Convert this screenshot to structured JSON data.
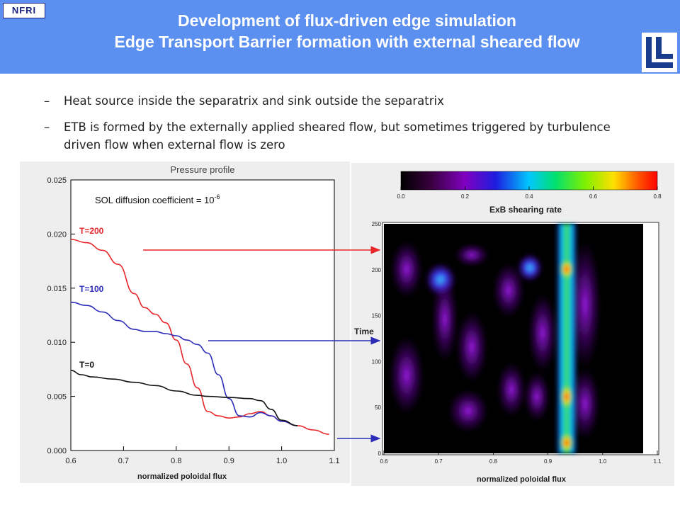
{
  "header": {
    "logo_left": "NFRI",
    "title_line1": "Development of flux-driven edge simulation",
    "title_line2": "Edge Transport Barrier formation with external sheared flow"
  },
  "bullets": [
    {
      "dash": "–",
      "text": "Heat source inside the separatrix and sink outside the separatrix"
    },
    {
      "dash": "–",
      "text": "ETB is formed by the externally applied sheared flow, but sometimes triggered by turbulence driven flow when external flow is zero"
    }
  ],
  "colors": {
    "header_bg": "#5b8ff0",
    "t200": "#e8262a",
    "t100": "#2c2cb8",
    "t0": "#111111"
  },
  "chart_data": [
    {
      "type": "line",
      "title": "Pressure profile",
      "annotation": "SOL diffusion coefficient = 10",
      "annotation_exponent": "-6",
      "xlabel": "normalized poloidal flux",
      "xlim": [
        0.6,
        1.1
      ],
      "ylim": [
        0.0,
        0.025
      ],
      "xticks": [
        "0.6",
        "0.7",
        "0.8",
        "0.9",
        "1.0",
        "1.1"
      ],
      "yticks": [
        "0.000",
        "0.005",
        "0.010",
        "0.015",
        "0.020",
        "0.025"
      ],
      "series": [
        {
          "name": "T=200",
          "color": "#e8262a",
          "x": [
            0.6,
            0.63,
            0.66,
            0.69,
            0.72,
            0.74,
            0.76,
            0.78,
            0.8,
            0.82,
            0.84,
            0.86,
            0.88,
            0.9,
            0.92,
            0.94,
            0.96,
            0.98,
            1.0,
            1.03,
            1.06,
            1.09
          ],
          "y": [
            0.0195,
            0.0192,
            0.0185,
            0.0172,
            0.0145,
            0.0132,
            0.0126,
            0.0118,
            0.0102,
            0.008,
            0.0058,
            0.0036,
            0.0032,
            0.003,
            0.0031,
            0.0034,
            0.0036,
            0.0032,
            0.0027,
            0.0023,
            0.0019,
            0.0015
          ]
        },
        {
          "name": "T=100",
          "color": "#2c2cb8",
          "x": [
            0.6,
            0.63,
            0.66,
            0.69,
            0.72,
            0.74,
            0.76,
            0.78,
            0.8,
            0.82,
            0.84,
            0.86,
            0.88,
            0.9,
            0.92,
            0.94,
            0.96,
            0.98,
            1.0,
            1.03
          ],
          "y": [
            0.0137,
            0.0134,
            0.0128,
            0.012,
            0.0112,
            0.011,
            0.011,
            0.0108,
            0.0106,
            0.0102,
            0.0098,
            0.009,
            0.007,
            0.0048,
            0.0032,
            0.0031,
            0.0035,
            0.0032,
            0.0027,
            0.0023
          ]
        },
        {
          "name": "T=0",
          "color": "#111111",
          "x": [
            0.6,
            0.62,
            0.64,
            0.68,
            0.72,
            0.76,
            0.8,
            0.84,
            0.86,
            0.9,
            0.94,
            0.96,
            0.98,
            1.0,
            1.03
          ],
          "y": [
            0.0074,
            0.007,
            0.0068,
            0.0066,
            0.0063,
            0.006,
            0.0055,
            0.0051,
            0.005,
            0.0049,
            0.0048,
            0.0046,
            0.0038,
            0.0028,
            0.0023
          ]
        }
      ]
    },
    {
      "type": "heatmap",
      "title": "ExB shearing rate",
      "xlabel": "normalized poloidal flux",
      "ylabel": "Time",
      "xlim": [
        0.6,
        1.1
      ],
      "ylim": [
        0,
        250
      ],
      "xticks": [
        "0.6",
        "0.7",
        "0.8",
        "0.9",
        "1.0",
        "1.1"
      ],
      "yticks": [
        "0",
        "50",
        "100",
        "150",
        "200",
        "250"
      ],
      "colorbar_range": [
        0.0,
        0.8
      ],
      "colorbar_ticks": [
        "0.0",
        "0.2",
        "0.4",
        "0.6",
        "0.8"
      ]
    }
  ]
}
